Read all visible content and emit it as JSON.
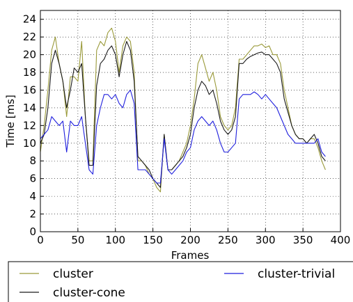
{
  "chart_data": {
    "type": "line",
    "xlabel": "Frames",
    "ylabel": "Time [ms]",
    "xlim": [
      0,
      400
    ],
    "ylim": [
      0,
      25
    ],
    "xticks": [
      0,
      50,
      100,
      150,
      200,
      250,
      300,
      350,
      400
    ],
    "yticks": [
      0,
      2,
      4,
      6,
      8,
      10,
      12,
      14,
      16,
      18,
      20,
      22,
      24
    ],
    "grid": true,
    "legend": "bottom",
    "x": [
      0,
      5,
      10,
      15,
      20,
      25,
      30,
      35,
      40,
      45,
      50,
      55,
      60,
      65,
      70,
      75,
      80,
      85,
      90,
      95,
      100,
      105,
      110,
      115,
      120,
      125,
      130,
      135,
      140,
      145,
      150,
      155,
      160,
      165,
      170,
      175,
      180,
      185,
      190,
      195,
      200,
      205,
      210,
      215,
      220,
      225,
      230,
      235,
      240,
      245,
      250,
      255,
      260,
      265,
      270,
      275,
      280,
      285,
      290,
      295,
      300,
      305,
      310,
      315,
      320,
      325,
      330,
      335,
      340,
      345,
      350,
      355,
      360,
      365,
      370,
      375,
      380
    ],
    "series": [
      {
        "name": "cluster",
        "color": "#9a9a3a",
        "values": [
          9.0,
          12.0,
          16.0,
          20.5,
          22.0,
          19.0,
          17.0,
          13.0,
          17.5,
          17.5,
          17.0,
          21.5,
          13.0,
          8.0,
          8.0,
          20.5,
          21.5,
          21.0,
          22.5,
          23.0,
          21.5,
          18.0,
          21.0,
          22.0,
          21.5,
          18.0,
          8.0,
          8.0,
          7.5,
          6.5,
          6.0,
          5.0,
          4.5,
          11.0,
          7.0,
          7.0,
          7.5,
          8.0,
          9.0,
          10.0,
          12.0,
          15.0,
          19.0,
          20.0,
          18.5,
          17.0,
          18.0,
          16.0,
          13.0,
          12.0,
          11.5,
          12.0,
          14.0,
          19.5,
          19.5,
          20.0,
          20.5,
          21.0,
          21.0,
          21.2,
          20.8,
          21.0,
          20.0,
          20.0,
          19.0,
          16.0,
          14.0,
          12.0,
          11.0,
          10.5,
          10.5,
          10.0,
          10.5,
          10.5,
          9.5,
          8.0,
          7.0
        ]
      },
      {
        "name": "cluster-cone",
        "color": "#1a1a1a",
        "values": [
          10.0,
          11.0,
          14.0,
          19.0,
          20.5,
          19.0,
          17.0,
          14.0,
          16.0,
          18.5,
          18.0,
          19.0,
          13.0,
          7.5,
          7.5,
          16.5,
          19.0,
          19.5,
          20.5,
          21.0,
          20.0,
          17.5,
          20.0,
          21.5,
          20.5,
          17.0,
          8.5,
          8.0,
          7.5,
          7.0,
          6.0,
          5.5,
          5.0,
          11.0,
          7.0,
          7.0,
          7.5,
          8.0,
          8.5,
          9.5,
          11.0,
          14.0,
          16.0,
          17.0,
          16.5,
          15.5,
          16.0,
          14.5,
          12.5,
          11.5,
          11.0,
          11.5,
          13.0,
          19.0,
          19.0,
          19.5,
          19.8,
          20.0,
          20.2,
          20.3,
          20.0,
          20.0,
          19.5,
          19.0,
          18.0,
          15.0,
          13.5,
          12.0,
          11.0,
          10.5,
          10.5,
          10.0,
          10.5,
          11.0,
          10.0,
          8.5,
          8.0
        ]
      },
      {
        "name": "cluster-trivial",
        "color": "#1f1fdd",
        "values": [
          10.5,
          11.0,
          11.5,
          13.0,
          12.5,
          12.0,
          12.5,
          9.0,
          12.5,
          12.0,
          12.0,
          13.0,
          10.0,
          7.0,
          6.5,
          12.0,
          14.0,
          15.5,
          15.5,
          15.0,
          15.5,
          14.5,
          14.0,
          15.5,
          16.0,
          14.5,
          7.0,
          7.0,
          7.0,
          6.5,
          6.0,
          5.5,
          5.5,
          10.5,
          7.0,
          6.5,
          7.0,
          7.5,
          8.0,
          9.0,
          9.5,
          11.5,
          12.5,
          13.0,
          12.5,
          12.0,
          12.5,
          11.5,
          10.0,
          9.0,
          9.0,
          9.5,
          10.0,
          15.0,
          15.5,
          15.5,
          15.5,
          15.8,
          15.5,
          15.0,
          15.5,
          15.0,
          14.5,
          14.0,
          13.0,
          12.0,
          11.0,
          10.5,
          10.0,
          10.0,
          10.0,
          10.0,
          10.0,
          10.0,
          10.5,
          9.0,
          8.5
        ]
      }
    ]
  }
}
